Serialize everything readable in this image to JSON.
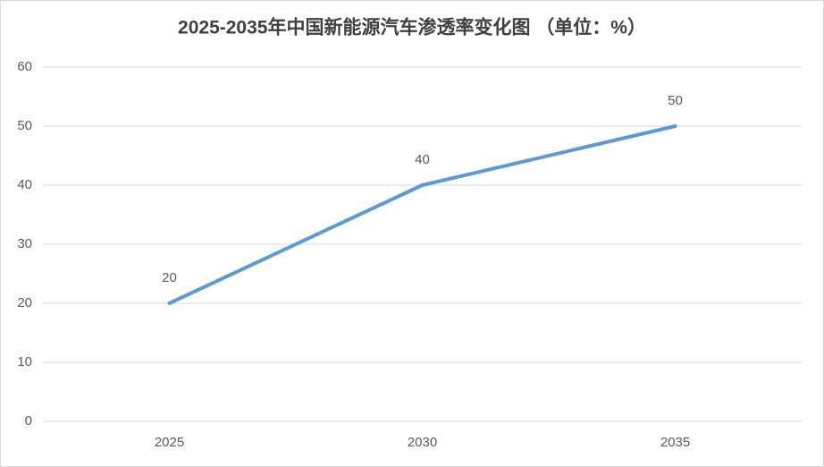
{
  "chart_data": {
    "type": "line",
    "title": "2025-2035年中国新能源汽车渗透率变化图 （单位：%）",
    "categories": [
      "2025",
      "2030",
      "2035"
    ],
    "values": [
      20,
      40,
      50
    ],
    "color": "#5b9bd5",
    "ylim": [
      0,
      60
    ],
    "yticks": [
      0,
      10,
      20,
      30,
      40,
      50,
      60
    ],
    "grid": true,
    "data_labels": true
  }
}
